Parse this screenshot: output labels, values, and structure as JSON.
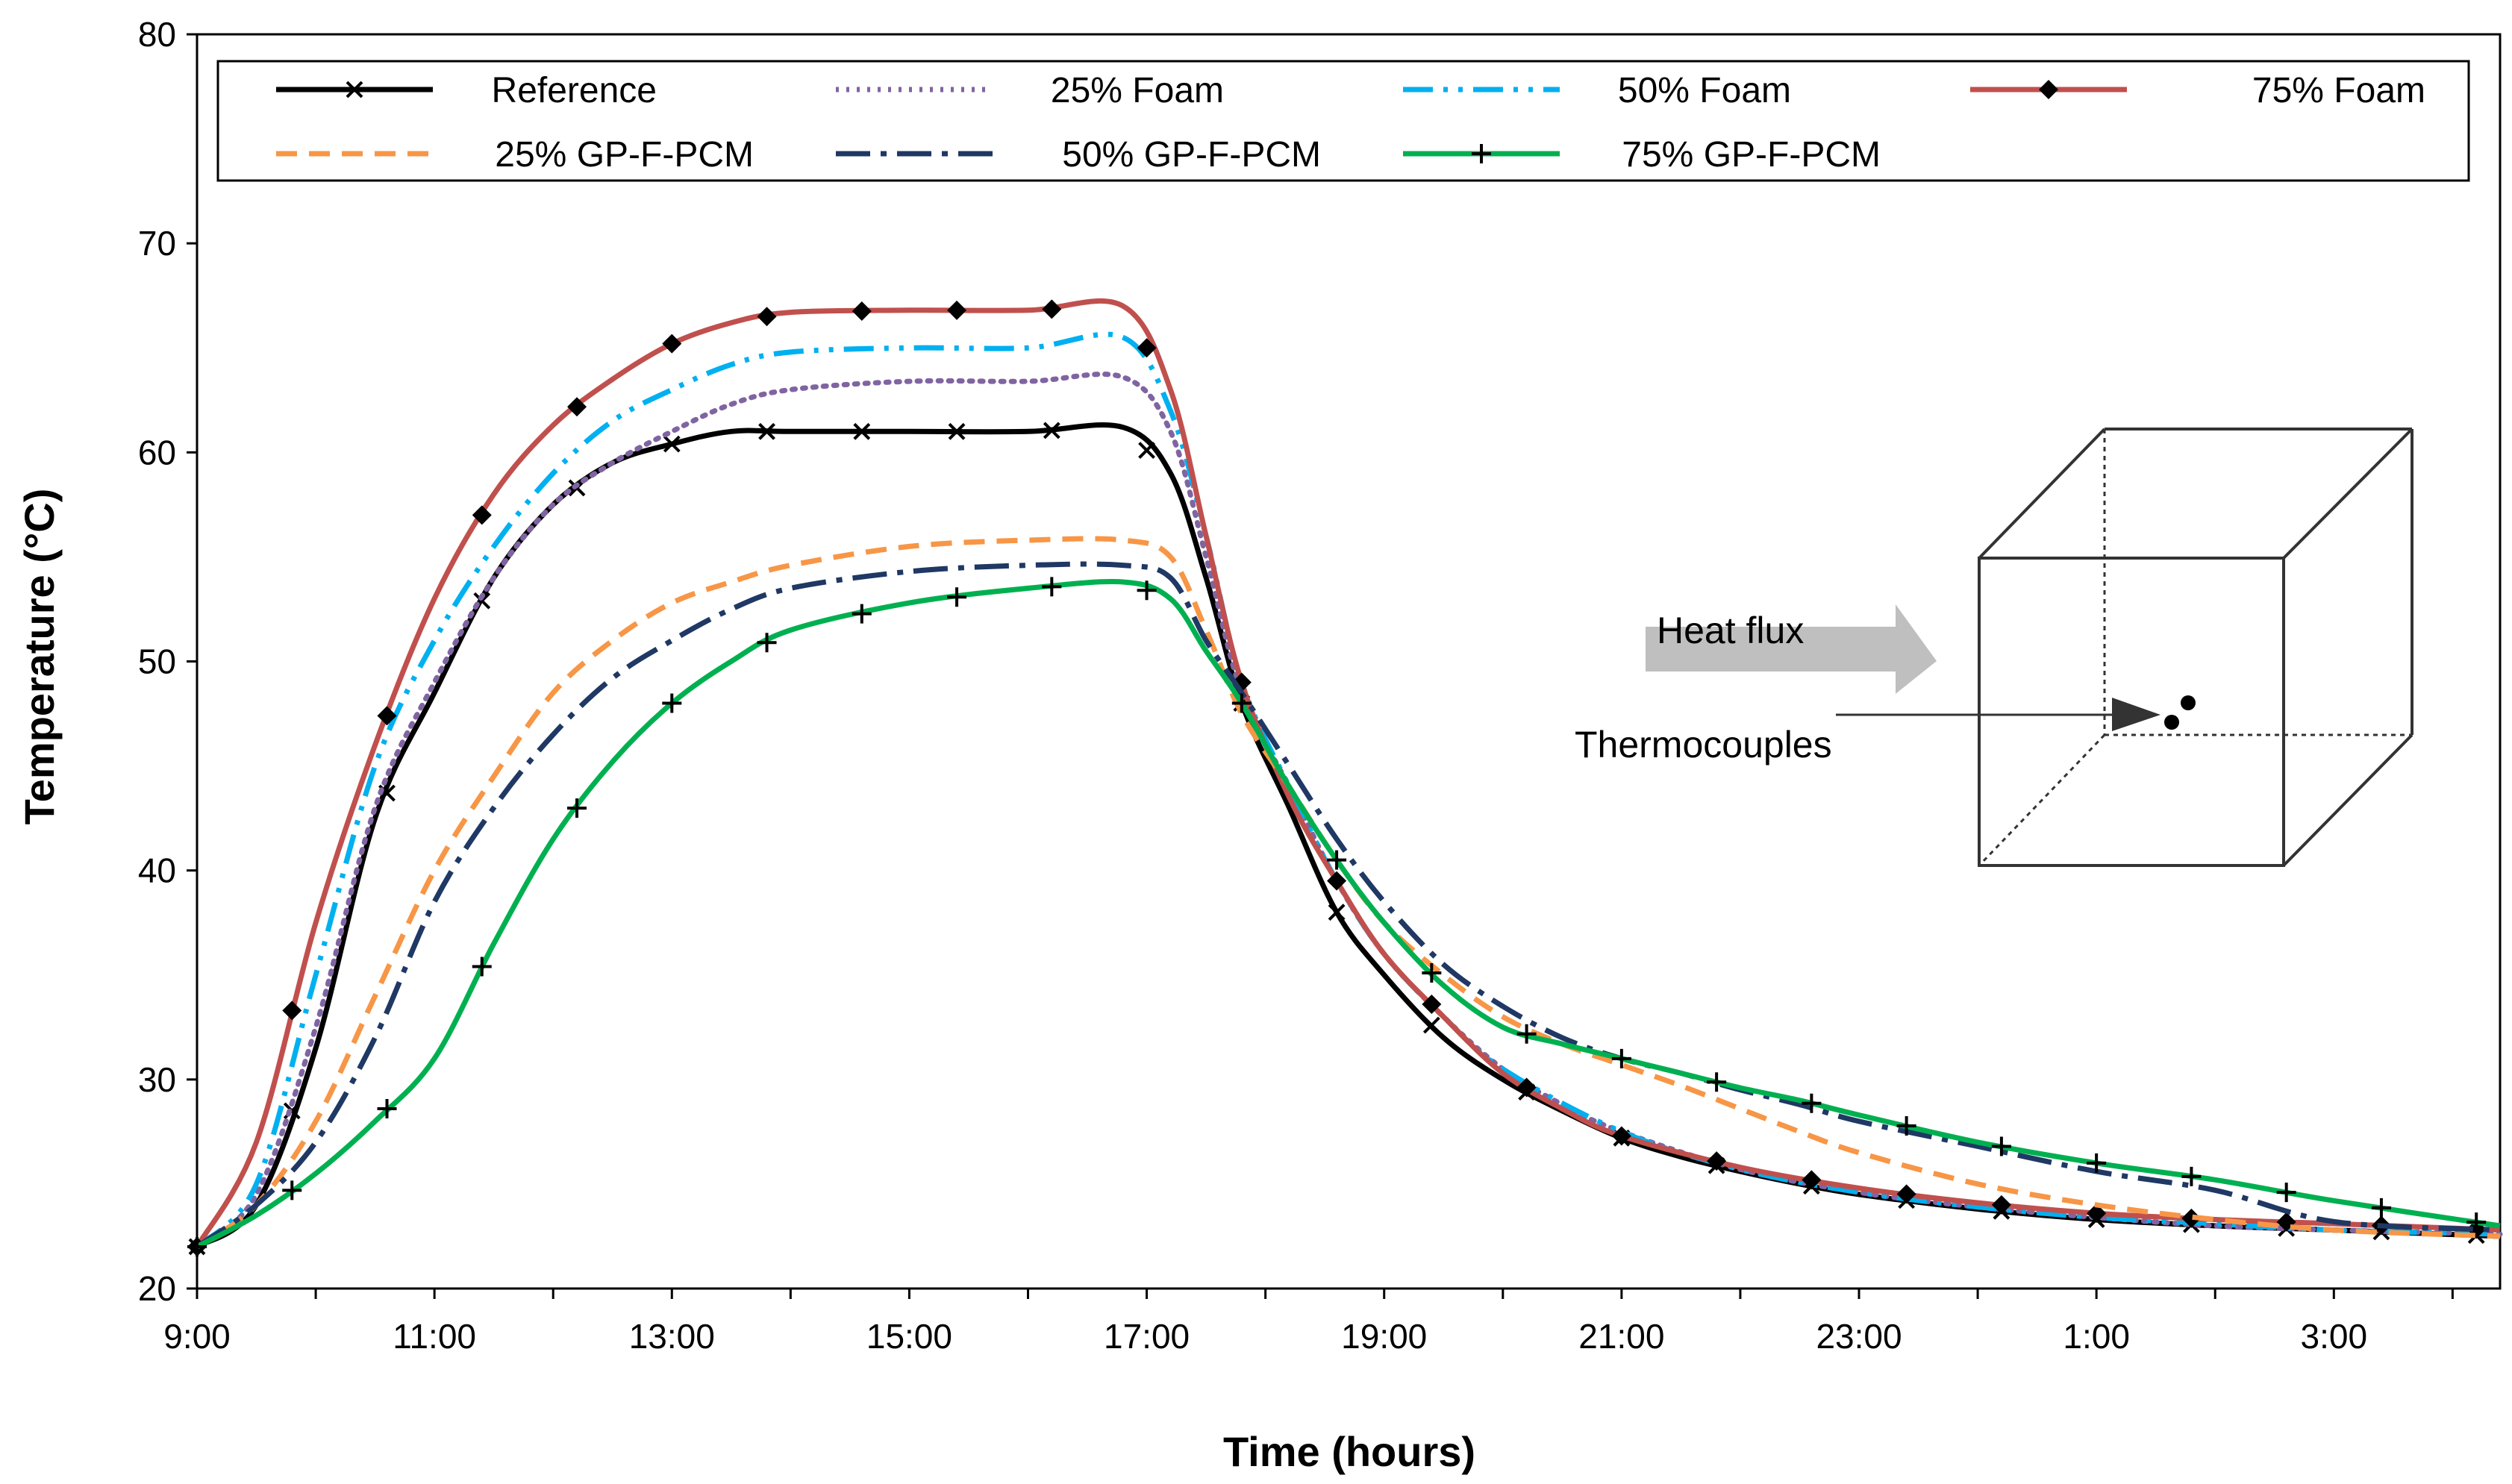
{
  "chart_data": {
    "type": "line",
    "title": "",
    "xlabel": "Time (hours)",
    "ylabel": "Temperature (°C)",
    "ylim": [
      20,
      80
    ],
    "yticks": [
      20,
      30,
      40,
      50,
      60,
      70,
      80
    ],
    "xlim": [
      0,
      19.4
    ],
    "xtick_labels": [
      "9:00",
      "11:00",
      "13:00",
      "15:00",
      "17:00",
      "19:00",
      "21:00",
      "23:00",
      "1:00",
      "3:00"
    ],
    "xtick_positions": [
      0,
      2,
      4,
      6,
      8,
      10,
      12,
      14,
      16,
      18
    ],
    "x_units": "hours elapsed since 9:00",
    "legend_location": "top",
    "grid": false,
    "series": [
      {
        "name": "Reference",
        "color": "#000000",
        "dash": "solid",
        "marker": "x",
        "points": [
          [
            0,
            22
          ],
          [
            0.5,
            24
          ],
          [
            1,
            31.5
          ],
          [
            1.5,
            42.5
          ],
          [
            2,
            48.5
          ],
          [
            2.5,
            54
          ],
          [
            3,
            57.5
          ],
          [
            3.5,
            59.5
          ],
          [
            4,
            60.4
          ],
          [
            4.5,
            61
          ],
          [
            5,
            61
          ],
          [
            6,
            61
          ],
          [
            7,
            61
          ],
          [
            7.8,
            61.2
          ],
          [
            8.2,
            59
          ],
          [
            8.5,
            54
          ],
          [
            8.8,
            48
          ],
          [
            9.2,
            43
          ],
          [
            9.6,
            38
          ],
          [
            10,
            35
          ],
          [
            10.5,
            32
          ],
          [
            11,
            30
          ],
          [
            11.5,
            28.5
          ],
          [
            12,
            27.2
          ],
          [
            12.5,
            26.3
          ],
          [
            13,
            25.6
          ],
          [
            13.5,
            25
          ],
          [
            14,
            24.5
          ],
          [
            15,
            23.8
          ],
          [
            16,
            23.3
          ],
          [
            17,
            23
          ],
          [
            18,
            22.8
          ],
          [
            19.4,
            22.5
          ]
        ]
      },
      {
        "name": "25% Foam",
        "color": "#8064A2",
        "dash": "dotted",
        "marker": "none",
        "points": [
          [
            0,
            22
          ],
          [
            0.5,
            24.5
          ],
          [
            1,
            32.5
          ],
          [
            1.5,
            43
          ],
          [
            2,
            49
          ],
          [
            2.5,
            54
          ],
          [
            3,
            57.5
          ],
          [
            3.5,
            59.5
          ],
          [
            4,
            61
          ],
          [
            4.5,
            62.3
          ],
          [
            5,
            63
          ],
          [
            6,
            63.4
          ],
          [
            7,
            63.4
          ],
          [
            7.8,
            63.6
          ],
          [
            8.2,
            61
          ],
          [
            8.5,
            55
          ],
          [
            8.8,
            48.5
          ],
          [
            9.2,
            44
          ],
          [
            9.6,
            39.5
          ],
          [
            10,
            36
          ],
          [
            10.5,
            33
          ],
          [
            11,
            30.5
          ],
          [
            11.5,
            28.8
          ],
          [
            12,
            27.5
          ],
          [
            13,
            25.7
          ],
          [
            14,
            24.6
          ],
          [
            15,
            23.9
          ],
          [
            16,
            23.4
          ],
          [
            17,
            23
          ],
          [
            18,
            22.8
          ],
          [
            19.4,
            22.6
          ]
        ]
      },
      {
        "name": "50% Foam",
        "color": "#00B0F0",
        "dash": "dash-dot-dot",
        "marker": "none",
        "points": [
          [
            0,
            22
          ],
          [
            0.5,
            25
          ],
          [
            1,
            35
          ],
          [
            1.5,
            45
          ],
          [
            2,
            51
          ],
          [
            2.5,
            55.5
          ],
          [
            3,
            59
          ],
          [
            3.5,
            61.5
          ],
          [
            4,
            63
          ],
          [
            4.5,
            64.2
          ],
          [
            5,
            64.8
          ],
          [
            6,
            65
          ],
          [
            7,
            65
          ],
          [
            7.8,
            65.5
          ],
          [
            8.2,
            62
          ],
          [
            8.5,
            56
          ],
          [
            8.8,
            49
          ],
          [
            9.2,
            44
          ],
          [
            9.6,
            39.5
          ],
          [
            10,
            36
          ],
          [
            10.5,
            33
          ],
          [
            11,
            30.5
          ],
          [
            12,
            27.5
          ],
          [
            13,
            25.7
          ],
          [
            14,
            24.6
          ],
          [
            15,
            23.9
          ],
          [
            16,
            23.4
          ],
          [
            17,
            23.1
          ],
          [
            18,
            22.8
          ],
          [
            19.4,
            22.6
          ]
        ]
      },
      {
        "name": "75% Foam",
        "color": "#C0504D",
        "dash": "solid",
        "marker": "diamond",
        "points": [
          [
            0,
            22
          ],
          [
            0.5,
            27
          ],
          [
            1,
            37.5
          ],
          [
            1.5,
            46
          ],
          [
            2,
            53
          ],
          [
            2.5,
            58
          ],
          [
            3,
            61.3
          ],
          [
            3.5,
            63.5
          ],
          [
            4,
            65.2
          ],
          [
            4.5,
            66.2
          ],
          [
            5,
            66.7
          ],
          [
            6,
            66.8
          ],
          [
            7,
            66.8
          ],
          [
            7.8,
            67
          ],
          [
            8.2,
            63
          ],
          [
            8.5,
            56
          ],
          [
            8.8,
            49
          ],
          [
            9.2,
            43.5
          ],
          [
            9.6,
            39.5
          ],
          [
            10,
            36
          ],
          [
            10.5,
            33
          ],
          [
            11,
            30.3
          ],
          [
            11.5,
            28.6
          ],
          [
            12,
            27.3
          ],
          [
            13,
            25.8
          ],
          [
            14,
            24.8
          ],
          [
            15,
            24.1
          ],
          [
            16,
            23.6
          ],
          [
            17,
            23.3
          ],
          [
            18,
            23.1
          ],
          [
            19.4,
            22.8
          ]
        ]
      },
      {
        "name": "25% GP-F-PCM",
        "color": "#F79646",
        "dash": "dashed",
        "marker": "none",
        "points": [
          [
            0,
            22
          ],
          [
            0.5,
            24
          ],
          [
            1,
            28
          ],
          [
            1.5,
            34
          ],
          [
            2,
            40
          ],
          [
            2.5,
            44.5
          ],
          [
            3,
            48.5
          ],
          [
            3.5,
            51
          ],
          [
            4,
            52.8
          ],
          [
            4.5,
            53.8
          ],
          [
            5,
            54.6
          ],
          [
            6,
            55.5
          ],
          [
            7,
            55.8
          ],
          [
            7.8,
            55.8
          ],
          [
            8.2,
            55
          ],
          [
            8.5,
            51.5
          ],
          [
            8.8,
            47.5
          ],
          [
            9.2,
            44
          ],
          [
            9.6,
            40.5
          ],
          [
            10,
            37.5
          ],
          [
            10.5,
            35
          ],
          [
            11,
            33
          ],
          [
            11.5,
            31.7
          ],
          [
            12,
            30.7
          ],
          [
            12.5,
            29.7
          ],
          [
            13,
            28.6
          ],
          [
            13.5,
            27.5
          ],
          [
            14,
            26.5
          ],
          [
            15,
            25
          ],
          [
            16,
            24
          ],
          [
            17,
            23.3
          ],
          [
            18,
            22.8
          ],
          [
            19.4,
            22.5
          ]
        ]
      },
      {
        "name": "50% GP-F-PCM",
        "color": "#1F3864",
        "dash": "long-dash-dot",
        "marker": "none",
        "points": [
          [
            0,
            22
          ],
          [
            0.5,
            24
          ],
          [
            1,
            27
          ],
          [
            1.5,
            32
          ],
          [
            2,
            38.5
          ],
          [
            2.5,
            43
          ],
          [
            3,
            46.5
          ],
          [
            3.5,
            49.2
          ],
          [
            4,
            51
          ],
          [
            4.5,
            52.5
          ],
          [
            5,
            53.5
          ],
          [
            6,
            54.3
          ],
          [
            7,
            54.6
          ],
          [
            7.8,
            54.6
          ],
          [
            8.2,
            54
          ],
          [
            8.5,
            51
          ],
          [
            8.8,
            48.5
          ],
          [
            9.2,
            45
          ],
          [
            9.6,
            41.5
          ],
          [
            10,
            38.5
          ],
          [
            10.5,
            35.5
          ],
          [
            11,
            33.5
          ],
          [
            11.5,
            32
          ],
          [
            12,
            31
          ],
          [
            12.5,
            30.3
          ],
          [
            13,
            29.5
          ],
          [
            13.5,
            28.8
          ],
          [
            14,
            28
          ],
          [
            15,
            26.8
          ],
          [
            16,
            25.6
          ],
          [
            17,
            24.7
          ],
          [
            18,
            23.2
          ],
          [
            19.4,
            22.8
          ]
        ]
      },
      {
        "name": "75% GP-F-PCM",
        "color": "#00B050",
        "dash": "solid",
        "marker": "plus",
        "points": [
          [
            0,
            22
          ],
          [
            0.5,
            23.5
          ],
          [
            1,
            25.5
          ],
          [
            1.5,
            28
          ],
          [
            2,
            31
          ],
          [
            2.5,
            36.5
          ],
          [
            3,
            41.5
          ],
          [
            3.5,
            45.2
          ],
          [
            4,
            48
          ],
          [
            4.5,
            50
          ],
          [
            5,
            51.5
          ],
          [
            6,
            52.8
          ],
          [
            7,
            53.5
          ],
          [
            7.8,
            53.8
          ],
          [
            8.2,
            53
          ],
          [
            8.5,
            50.5
          ],
          [
            8.8,
            48
          ],
          [
            9.2,
            44
          ],
          [
            9.6,
            40.5
          ],
          [
            10,
            37.5
          ],
          [
            10.5,
            34.5
          ],
          [
            11,
            32.5
          ],
          [
            11.5,
            31.7
          ],
          [
            12,
            31
          ],
          [
            12.5,
            30.3
          ],
          [
            13,
            29.6
          ],
          [
            13.5,
            29
          ],
          [
            14,
            28.3
          ],
          [
            15,
            27
          ],
          [
            16,
            26
          ],
          [
            17,
            25.2
          ],
          [
            18,
            24.2
          ],
          [
            19.4,
            23
          ]
        ]
      }
    ],
    "inset": {
      "heat_flux_label": "Heat flux",
      "thermocouples_label": "Thermocouples"
    }
  }
}
